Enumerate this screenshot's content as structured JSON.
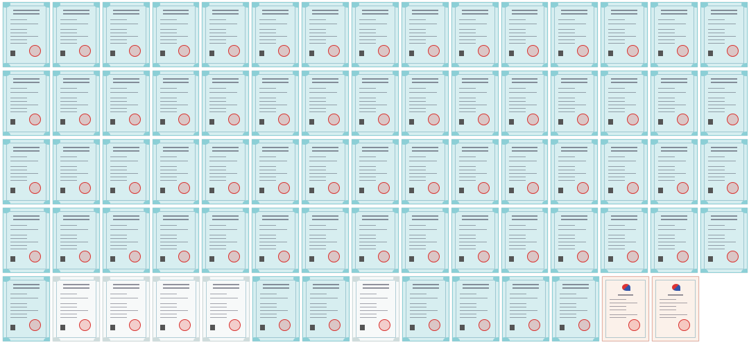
{
  "colors": {
    "copyright-blue": {
      "bg": "#d7eef0",
      "border": "#8ccfd6"
    },
    "copyright-white": {
      "bg": "#f7f9f9",
      "border": "#cfdcdc"
    },
    "patent": {
      "bg": "#fbf1ea",
      "border": "#e7b3a6"
    },
    "seal": "#d9322f"
  },
  "rows": [
    {
      "certificates": [
        "copyright-blue",
        "copyright-blue",
        "copyright-blue",
        "copyright-blue",
        "copyright-blue",
        "copyright-blue",
        "copyright-blue",
        "copyright-blue",
        "copyright-blue",
        "copyright-blue",
        "copyright-blue",
        "copyright-blue",
        "copyright-blue",
        "copyright-blue",
        "copyright-blue"
      ]
    },
    {
      "certificates": [
        "copyright-blue",
        "copyright-blue",
        "copyright-blue",
        "copyright-blue",
        "copyright-blue",
        "copyright-blue",
        "copyright-blue",
        "copyright-blue",
        "copyright-blue",
        "copyright-blue",
        "copyright-blue",
        "copyright-blue",
        "copyright-blue",
        "copyright-blue",
        "copyright-blue"
      ]
    },
    {
      "certificates": [
        "copyright-blue",
        "copyright-blue",
        "copyright-blue",
        "copyright-blue",
        "copyright-blue",
        "copyright-blue",
        "copyright-blue",
        "copyright-blue",
        "copyright-blue",
        "copyright-blue",
        "copyright-blue",
        "copyright-blue",
        "copyright-blue",
        "copyright-blue",
        "copyright-blue"
      ]
    },
    {
      "certificates": [
        "copyright-blue",
        "copyright-blue",
        "copyright-blue",
        "copyright-blue",
        "copyright-blue",
        "copyright-blue",
        "copyright-blue",
        "copyright-blue",
        "copyright-blue",
        "copyright-blue",
        "copyright-blue",
        "copyright-blue",
        "copyright-blue",
        "copyright-blue",
        "copyright-blue"
      ]
    },
    {
      "certificates": [
        "copyright-blue",
        "copyright-white",
        "copyright-white",
        "copyright-white",
        "copyright-white",
        "copyright-blue",
        "copyright-blue",
        "copyright-white",
        "copyright-blue",
        "copyright-blue",
        "copyright-blue",
        "copyright-blue",
        "patent",
        "patent"
      ]
    }
  ]
}
